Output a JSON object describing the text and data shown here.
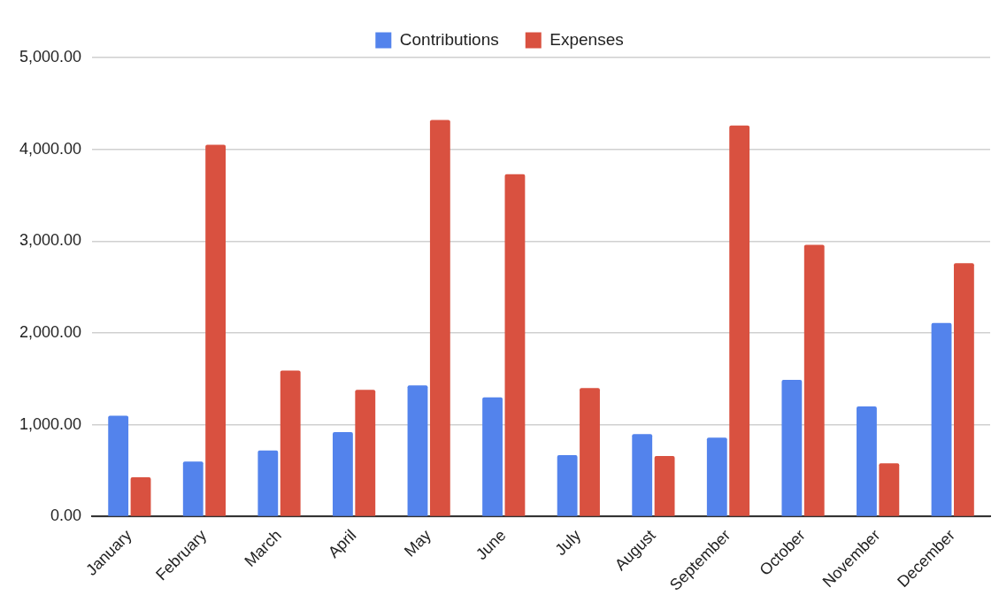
{
  "chart_data": {
    "type": "bar",
    "categories": [
      "January",
      "February",
      "March",
      "April",
      "May",
      "June",
      "July",
      "August",
      "September",
      "October",
      "November",
      "December"
    ],
    "series": [
      {
        "name": "Contributions",
        "color": "#5383ec",
        "values": [
          1100,
          600,
          720,
          920,
          1430,
          1300,
          670,
          900,
          860,
          1490,
          1200,
          2110
        ]
      },
      {
        "name": "Expenses",
        "color": "#d95140",
        "values": [
          430,
          4050,
          1590,
          1380,
          4320,
          3730,
          1400,
          660,
          4260,
          2960,
          580,
          2760
        ]
      }
    ],
    "ylim": [
      0,
      5000
    ],
    "yticks": [
      {
        "value": 0,
        "label": "0.00"
      },
      {
        "value": 1000,
        "label": "1,000.00"
      },
      {
        "value": 2000,
        "label": "2,000.00"
      },
      {
        "value": 3000,
        "label": "3,000.00"
      },
      {
        "value": 4000,
        "label": "4,000.00"
      },
      {
        "value": 5000,
        "label": "5,000.00"
      }
    ],
    "grid": "y",
    "legend": "top"
  }
}
